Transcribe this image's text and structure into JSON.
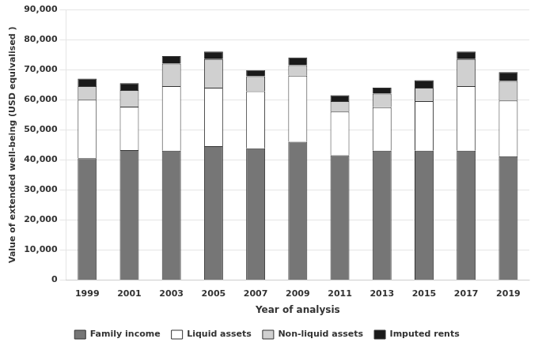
{
  "chart_data": {
    "type": "bar",
    "stacked": true,
    "xlabel": "Year of analysis",
    "ylabel": "Value of extended well-being (USD equivalised )",
    "categories": [
      "1999",
      "2001",
      "2003",
      "2005",
      "2007",
      "2009",
      "2011",
      "2013",
      "2015",
      "2017",
      "2019"
    ],
    "series": [
      {
        "name": "Family income",
        "color": "#767676",
        "values": [
          40500,
          43200,
          43000,
          44500,
          43800,
          46000,
          41500,
          43000,
          43000,
          43000,
          41200
        ]
      },
      {
        "name": "Liquid assets",
        "color": "#ffffff",
        "values": [
          19500,
          14500,
          21500,
          19500,
          19000,
          22000,
          14500,
          14500,
          16500,
          21500,
          18500
        ]
      },
      {
        "name": "Non-liquid assets",
        "color": "#d0d0d0",
        "values": [
          4500,
          5500,
          7500,
          9500,
          5000,
          3500,
          3500,
          4500,
          4500,
          9000,
          6500
        ]
      },
      {
        "name": "Imputed rents",
        "color": "#1a1a1a",
        "values": [
          2500,
          2300,
          2500,
          2500,
          2000,
          2500,
          2000,
          2000,
          2500,
          2500,
          3000
        ]
      }
    ],
    "ylim": [
      0,
      90000
    ],
    "yticks": [
      0,
      {
        "value": 10000,
        "label": "10,000"
      },
      {
        "value": 20000,
        "label": "20,000"
      },
      {
        "value": 30000,
        "label": "30,000"
      },
      {
        "value": 40000,
        "label": "40,000"
      },
      {
        "value": 50000,
        "label": "50,000"
      },
      {
        "value": 60000,
        "label": "60,000"
      },
      {
        "value": 70000,
        "label": "70,000"
      },
      {
        "value": 80000,
        "label": "80,000"
      },
      {
        "value": 90000,
        "label": "90,000"
      }
    ],
    "grid": "y",
    "legend": "bottom"
  }
}
